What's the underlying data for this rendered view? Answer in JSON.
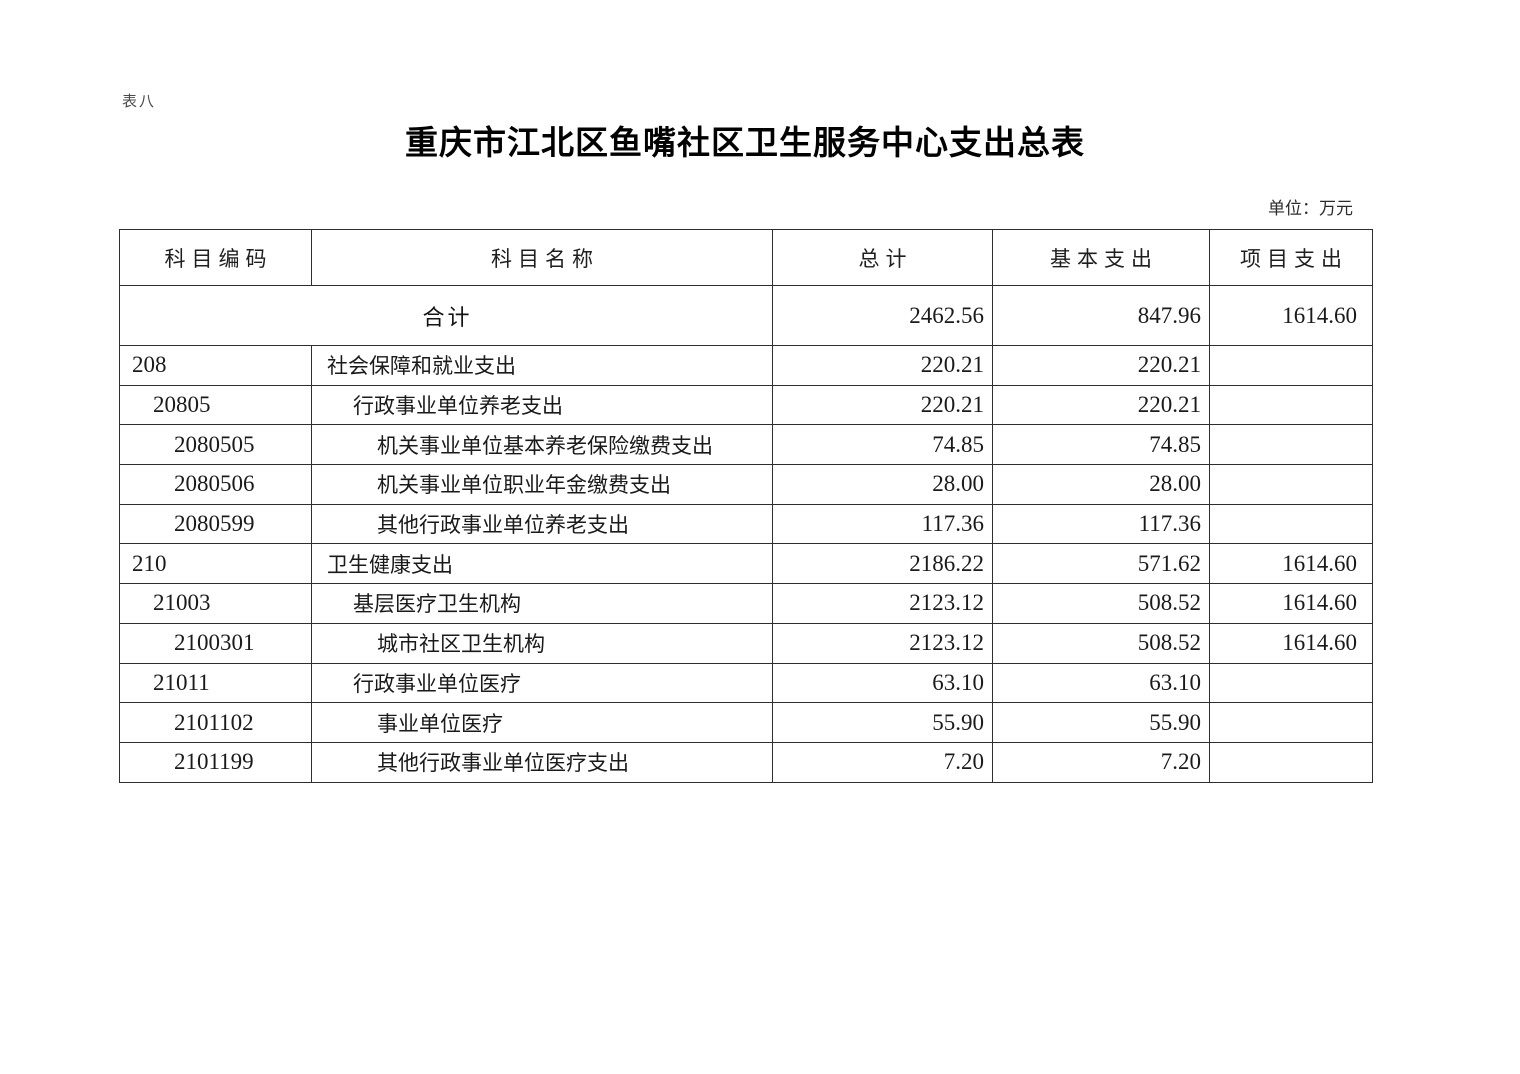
{
  "page": {
    "table_label": "表八",
    "title": "重庆市江北区鱼嘴社区卫生服务中心支出总表",
    "unit_note": "单位：万元",
    "text_color": "#1a1a1a",
    "border_color": "#2e2e2e",
    "background_color": "#ffffff"
  },
  "table": {
    "columns": [
      "科目编码",
      "科目名称",
      "总计",
      "基本支出",
      "项目支出"
    ],
    "total_row": {
      "label": "合计",
      "total": "2462.56",
      "basic": "847.96",
      "project": "1614.60"
    },
    "rows": [
      {
        "code": "208",
        "name": "社会保障和就业支出",
        "level": 1,
        "total": "220.21",
        "basic": "220.21",
        "project": ""
      },
      {
        "code": "20805",
        "name": "行政事业单位养老支出",
        "level": 2,
        "total": "220.21",
        "basic": "220.21",
        "project": ""
      },
      {
        "code": "2080505",
        "name": "机关事业单位基本养老保险缴费支出",
        "level": 3,
        "total": "74.85",
        "basic": "74.85",
        "project": ""
      },
      {
        "code": "2080506",
        "name": "机关事业单位职业年金缴费支出",
        "level": 3,
        "total": "28.00",
        "basic": "28.00",
        "project": ""
      },
      {
        "code": "2080599",
        "name": "其他行政事业单位养老支出",
        "level": 3,
        "total": "117.36",
        "basic": "117.36",
        "project": ""
      },
      {
        "code": "210",
        "name": "卫生健康支出",
        "level": 1,
        "total": "2186.22",
        "basic": "571.62",
        "project": "1614.60"
      },
      {
        "code": "21003",
        "name": "基层医疗卫生机构",
        "level": 2,
        "total": "2123.12",
        "basic": "508.52",
        "project": "1614.60"
      },
      {
        "code": "2100301",
        "name": "城市社区卫生机构",
        "level": 3,
        "total": "2123.12",
        "basic": "508.52",
        "project": "1614.60"
      },
      {
        "code": "21011",
        "name": "行政事业单位医疗",
        "level": 2,
        "total": "63.10",
        "basic": "63.10",
        "project": ""
      },
      {
        "code": "2101102",
        "name": "事业单位医疗",
        "level": 3,
        "total": "55.90",
        "basic": "55.90",
        "project": ""
      },
      {
        "code": "2101199",
        "name": "其他行政事业单位医疗支出",
        "level": 3,
        "total": "7.20",
        "basic": "7.20",
        "project": ""
      }
    ]
  }
}
